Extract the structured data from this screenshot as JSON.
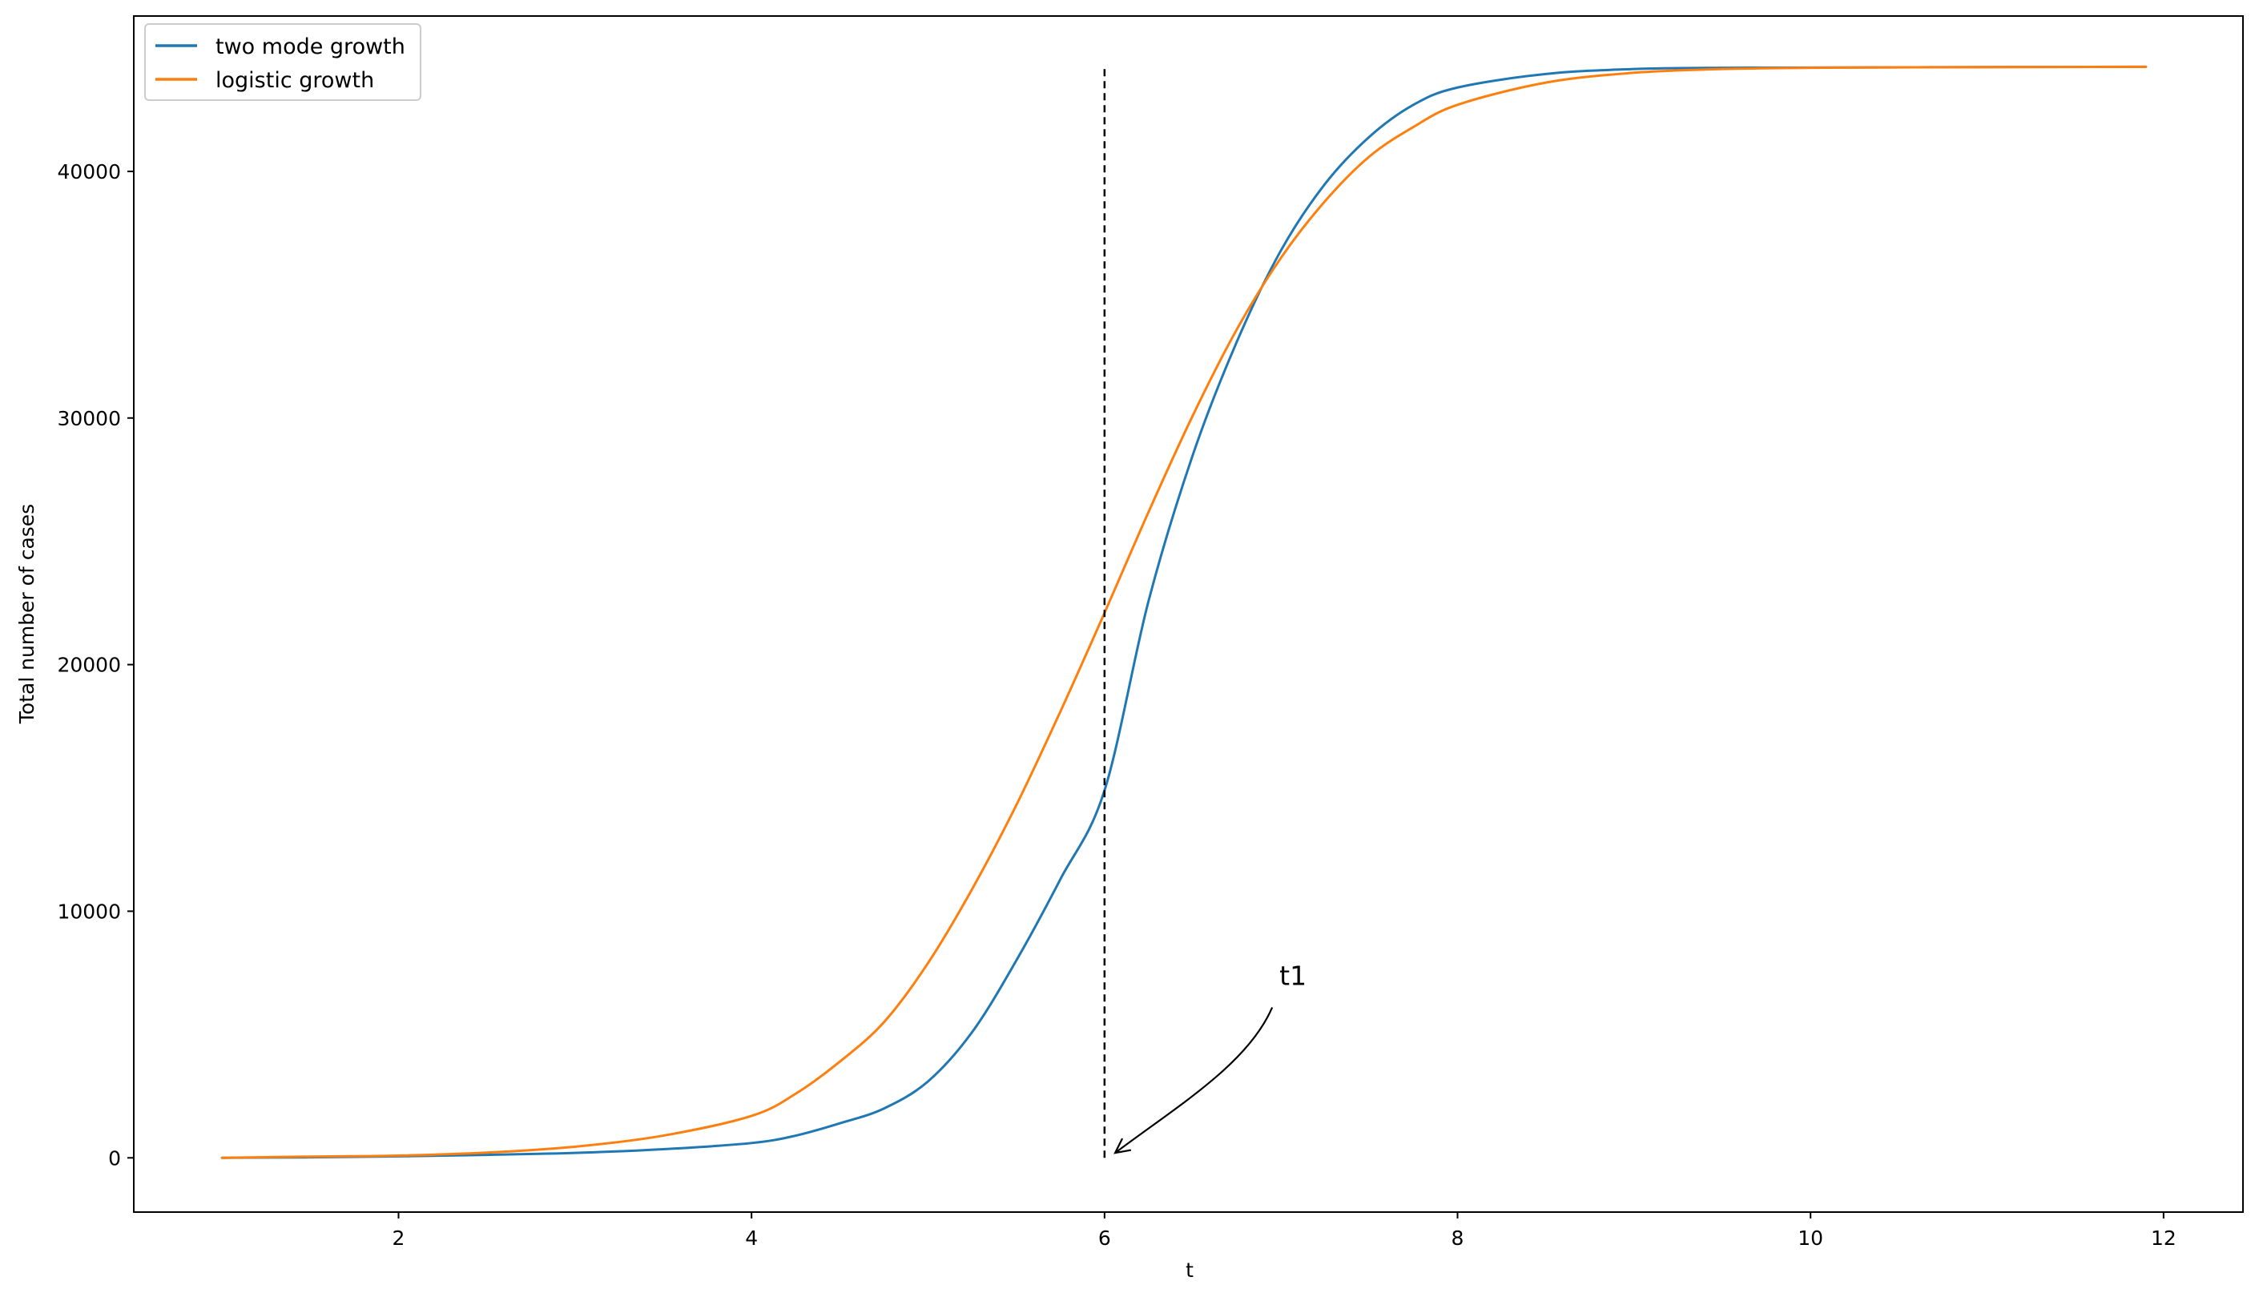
{
  "chart_data": {
    "type": "line",
    "title": "",
    "xlabel": "t",
    "ylabel": "Total number of cases",
    "xlim": [
      0.5,
      12.45
    ],
    "ylim": [
      -2200,
      46300
    ],
    "xticks": [
      2,
      4,
      6,
      8,
      10,
      12
    ],
    "yticks": [
      0,
      10000,
      20000,
      30000,
      40000
    ],
    "grid": false,
    "legend_position": "top-left",
    "series": [
      {
        "name": "two mode growth",
        "color": "#1f77b4",
        "x": [
          1.0,
          1.5,
          2.0,
          2.5,
          3.0,
          3.5,
          4.0,
          4.25,
          4.5,
          4.75,
          5.0,
          5.25,
          5.5,
          5.75,
          6.0,
          6.25,
          6.5,
          6.75,
          7.0,
          7.25,
          7.5,
          7.75,
          8.0,
          8.5,
          9.0,
          9.5,
          10.0,
          11.0,
          11.9
        ],
        "y": [
          0,
          20,
          60,
          120,
          200,
          350,
          600,
          900,
          1400,
          2000,
          3100,
          5100,
          8000,
          11300,
          14900,
          22600,
          28500,
          33100,
          36800,
          39500,
          41400,
          42700,
          43400,
          43950,
          44150,
          44200,
          44210,
          44230,
          44240
        ]
      },
      {
        "name": "logistic growth",
        "color": "#ff7f0e",
        "x": [
          1.0,
          1.5,
          2.0,
          2.5,
          3.0,
          3.5,
          4.0,
          4.25,
          4.5,
          4.75,
          5.0,
          5.25,
          5.5,
          5.75,
          6.0,
          6.25,
          6.5,
          6.75,
          7.0,
          7.25,
          7.5,
          7.75,
          8.0,
          8.5,
          9.0,
          9.5,
          10.0,
          11.0,
          11.9
        ],
        "y": [
          0,
          50,
          90,
          210,
          450,
          900,
          1700,
          2600,
          3900,
          5500,
          7900,
          10900,
          14300,
          18100,
          22100,
          26200,
          30100,
          33600,
          36500,
          38800,
          40600,
          41800,
          42700,
          43600,
          44000,
          44150,
          44200,
          44230,
          44240
        ]
      }
    ],
    "annotations": [
      {
        "type": "vline",
        "x": 6.0,
        "y_from": 0,
        "y_to": 44300,
        "style": "dashed",
        "color": "#000000"
      },
      {
        "type": "arrow",
        "text": "t1",
        "text_x": 7.0,
        "text_y": 7400,
        "tail_x": 6.95,
        "tail_y": 6100,
        "head_x": 6.06,
        "head_y": 200
      }
    ]
  }
}
